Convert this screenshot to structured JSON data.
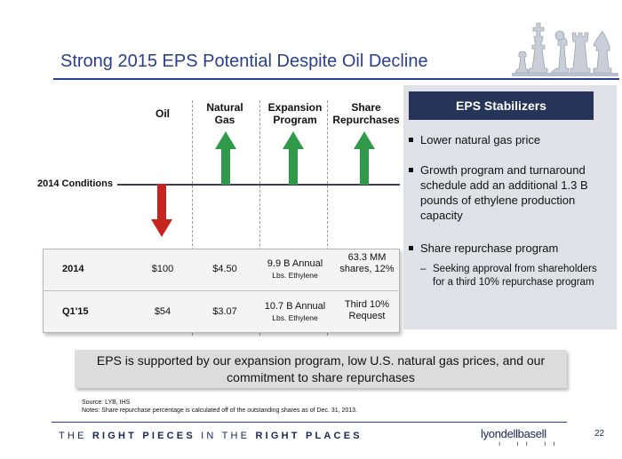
{
  "slide": {
    "title": "Strong 2015 EPS Potential Despite Oil Decline",
    "page_number": "22"
  },
  "columns": {
    "oil": "Oil",
    "natural_gas": "Natural Gas",
    "expansion": "Expansion Program",
    "share_repurchases": "Share Repurchases"
  },
  "conditions_label": "2014 Conditions",
  "table": {
    "rows": [
      {
        "label": "2014",
        "oil": "$100",
        "gas": "$4.50",
        "expansion": "9.9 B Annual",
        "expansion_unit": "Lbs. Ethylene",
        "share": "63.3 MM shares, 12%"
      },
      {
        "label": "Q1'15",
        "oil": "$54",
        "gas": "$3.07",
        "expansion": "10.7 B Annual",
        "expansion_unit": "Lbs. Ethylene",
        "share": "Third 10% Request"
      }
    ]
  },
  "sidebar": {
    "heading": "EPS Stabilizers",
    "bullets": [
      "Lower natural gas price",
      "Growth program and turnaround schedule add an additional 1.3 B pounds of ethylene production capacity",
      "Share repurchase program"
    ],
    "sub_bullet": "Seeking approval from shareholders for a third 10% repurchase program"
  },
  "callout": "EPS is supported by our expansion program, low U.S. natural gas prices, and our commitment to share repurchases",
  "footnotes": {
    "source": "Source: LYB, IHS",
    "notes": "Notes: Share repurchase percentage is calculated off of the outstanding shares as of Dec. 31, 2013."
  },
  "footer": {
    "tagline_1": "THE ",
    "tagline_2": "RIGHT PIECES",
    "tagline_3": " IN THE ",
    "tagline_4": "RIGHT PLACES",
    "logo": "lyondellbasell"
  },
  "colors": {
    "title_blue": "#2a3f8f",
    "arrow_green": "#2e9a4a",
    "arrow_red": "#c8241f",
    "header_navy": "#27345a"
  }
}
